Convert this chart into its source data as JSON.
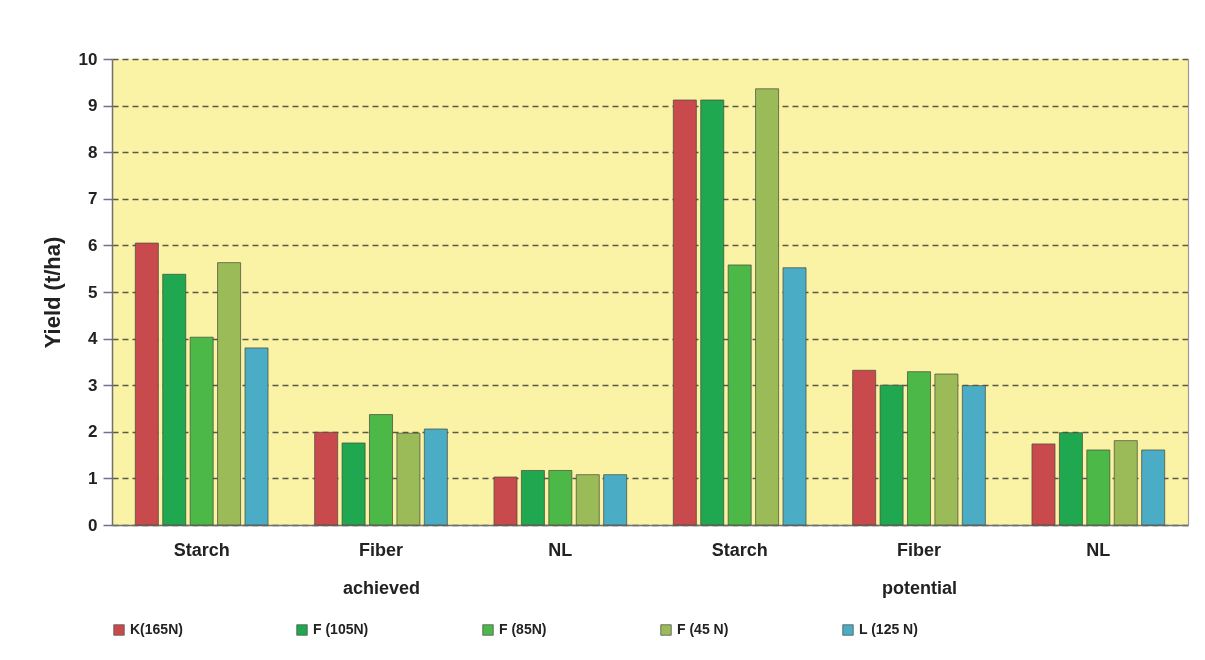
{
  "chart_data": [
    {
      "type": "bar",
      "categories": [
        "Starch",
        "Fiber",
        "NL"
      ],
      "xlabel": "achieved",
      "ylabel": "Yield (t/ha)",
      "ylim": [
        0,
        10
      ],
      "yticks": [
        0,
        1,
        2,
        3,
        4,
        5,
        6,
        7,
        8,
        9,
        10
      ],
      "grid": "y",
      "legend": "bottom",
      "series": [
        {
          "name": "K(165N)",
          "color": "#c94a4d",
          "values": [
            6.05,
            1.99,
            1.03
          ]
        },
        {
          "name": "F (105N)",
          "color": "#1fa84f",
          "values": [
            5.38,
            1.76,
            1.17
          ]
        },
        {
          "name": "F (85N)",
          "color": "#4cb848",
          "values": [
            4.03,
            2.37,
            1.17
          ]
        },
        {
          "name": "F (45 N)",
          "color": "#9bbb59",
          "values": [
            5.63,
            1.97,
            1.08
          ]
        },
        {
          "name": "L (125 N)",
          "color": "#4bacc6",
          "values": [
            3.8,
            2.06,
            1.08
          ]
        }
      ]
    },
    {
      "type": "bar",
      "categories": [
        "Starch",
        "Fiber",
        "NL"
      ],
      "xlabel": "potential",
      "ylim": [
        0,
        10
      ],
      "yticks": [
        0,
        1,
        2,
        3,
        4,
        5,
        6,
        7,
        8,
        9,
        10
      ],
      "grid": "y",
      "tick_labels": "x",
      "series": [
        {
          "name": "K(165N)",
          "color": "#c94a4d",
          "values": [
            9.12,
            3.32,
            1.74
          ]
        },
        {
          "name": "F (105N)",
          "color": "#1fa84f",
          "values": [
            9.12,
            3.0,
            1.98
          ]
        },
        {
          "name": "F (85N)",
          "color": "#4cb848",
          "values": [
            5.58,
            3.29,
            1.61
          ]
        },
        {
          "name": "F (45 N)",
          "color": "#9bbb59",
          "values": [
            9.36,
            3.24,
            1.81
          ]
        },
        {
          "name": "L (125 N)",
          "color": "#4bacc6",
          "values": [
            5.52,
            2.99,
            1.61
          ]
        }
      ]
    }
  ]
}
